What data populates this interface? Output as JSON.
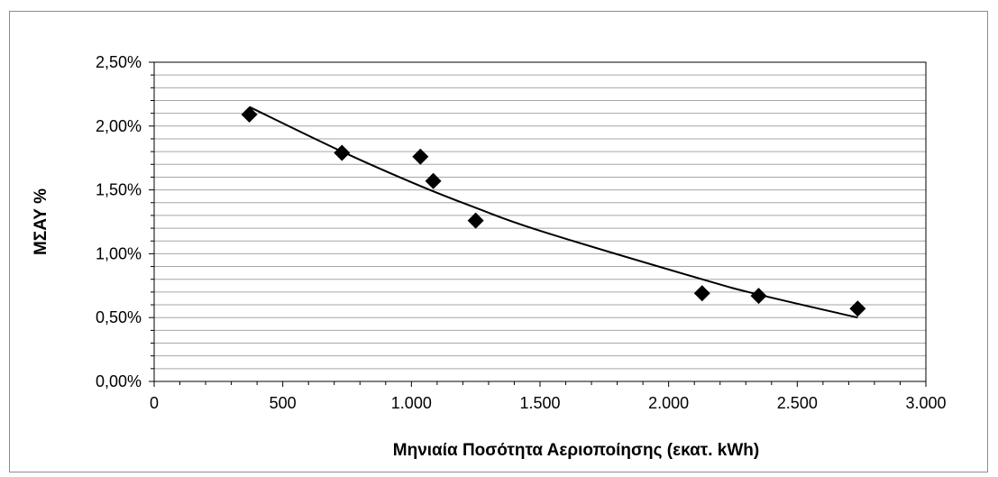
{
  "chart_data": {
    "type": "scatter",
    "title": "",
    "xlabel": "Μηνιαία Ποσότητα Αεριοποίησης (εκατ. kWh)",
    "ylabel": "ΜΣΑΥ %",
    "xlim": [
      0,
      3000
    ],
    "ylim": [
      0,
      0.025
    ],
    "x_ticks": [
      0,
      500,
      1000,
      1500,
      2000,
      2500,
      3000
    ],
    "x_tick_labels": [
      "0",
      "500",
      "1.000",
      "1.500",
      "2.000",
      "2.500",
      "3.000"
    ],
    "y_ticks": [
      0,
      0.005,
      0.01,
      0.015,
      0.02,
      0.025
    ],
    "y_tick_labels": [
      "0,00%",
      "0,50%",
      "1,00%",
      "1,50%",
      "2,00%",
      "2,50%"
    ],
    "grid": true,
    "legend": "none",
    "series": [
      {
        "marker": "diamond",
        "color": "#000000",
        "points": [
          {
            "x": 370,
            "y": 0.0209
          },
          {
            "x": 730,
            "y": 0.0179
          },
          {
            "x": 1035,
            "y": 0.0176
          },
          {
            "x": 1085,
            "y": 0.0157
          },
          {
            "x": 1250,
            "y": 0.0126
          },
          {
            "x": 2130,
            "y": 0.0069
          },
          {
            "x": 2350,
            "y": 0.0067
          },
          {
            "x": 2735,
            "y": 0.0057
          }
        ]
      }
    ],
    "trendline": {
      "type": "curve",
      "color": "#000000",
      "points": [
        {
          "x": 370,
          "y": 0.0215
        },
        {
          "x": 730,
          "y": 0.018
        },
        {
          "x": 1035,
          "y": 0.0153
        },
        {
          "x": 1250,
          "y": 0.0136
        },
        {
          "x": 1500,
          "y": 0.0118
        },
        {
          "x": 2130,
          "y": 0.008
        },
        {
          "x": 2350,
          "y": 0.0068
        },
        {
          "x": 2735,
          "y": 0.005
        }
      ]
    }
  }
}
